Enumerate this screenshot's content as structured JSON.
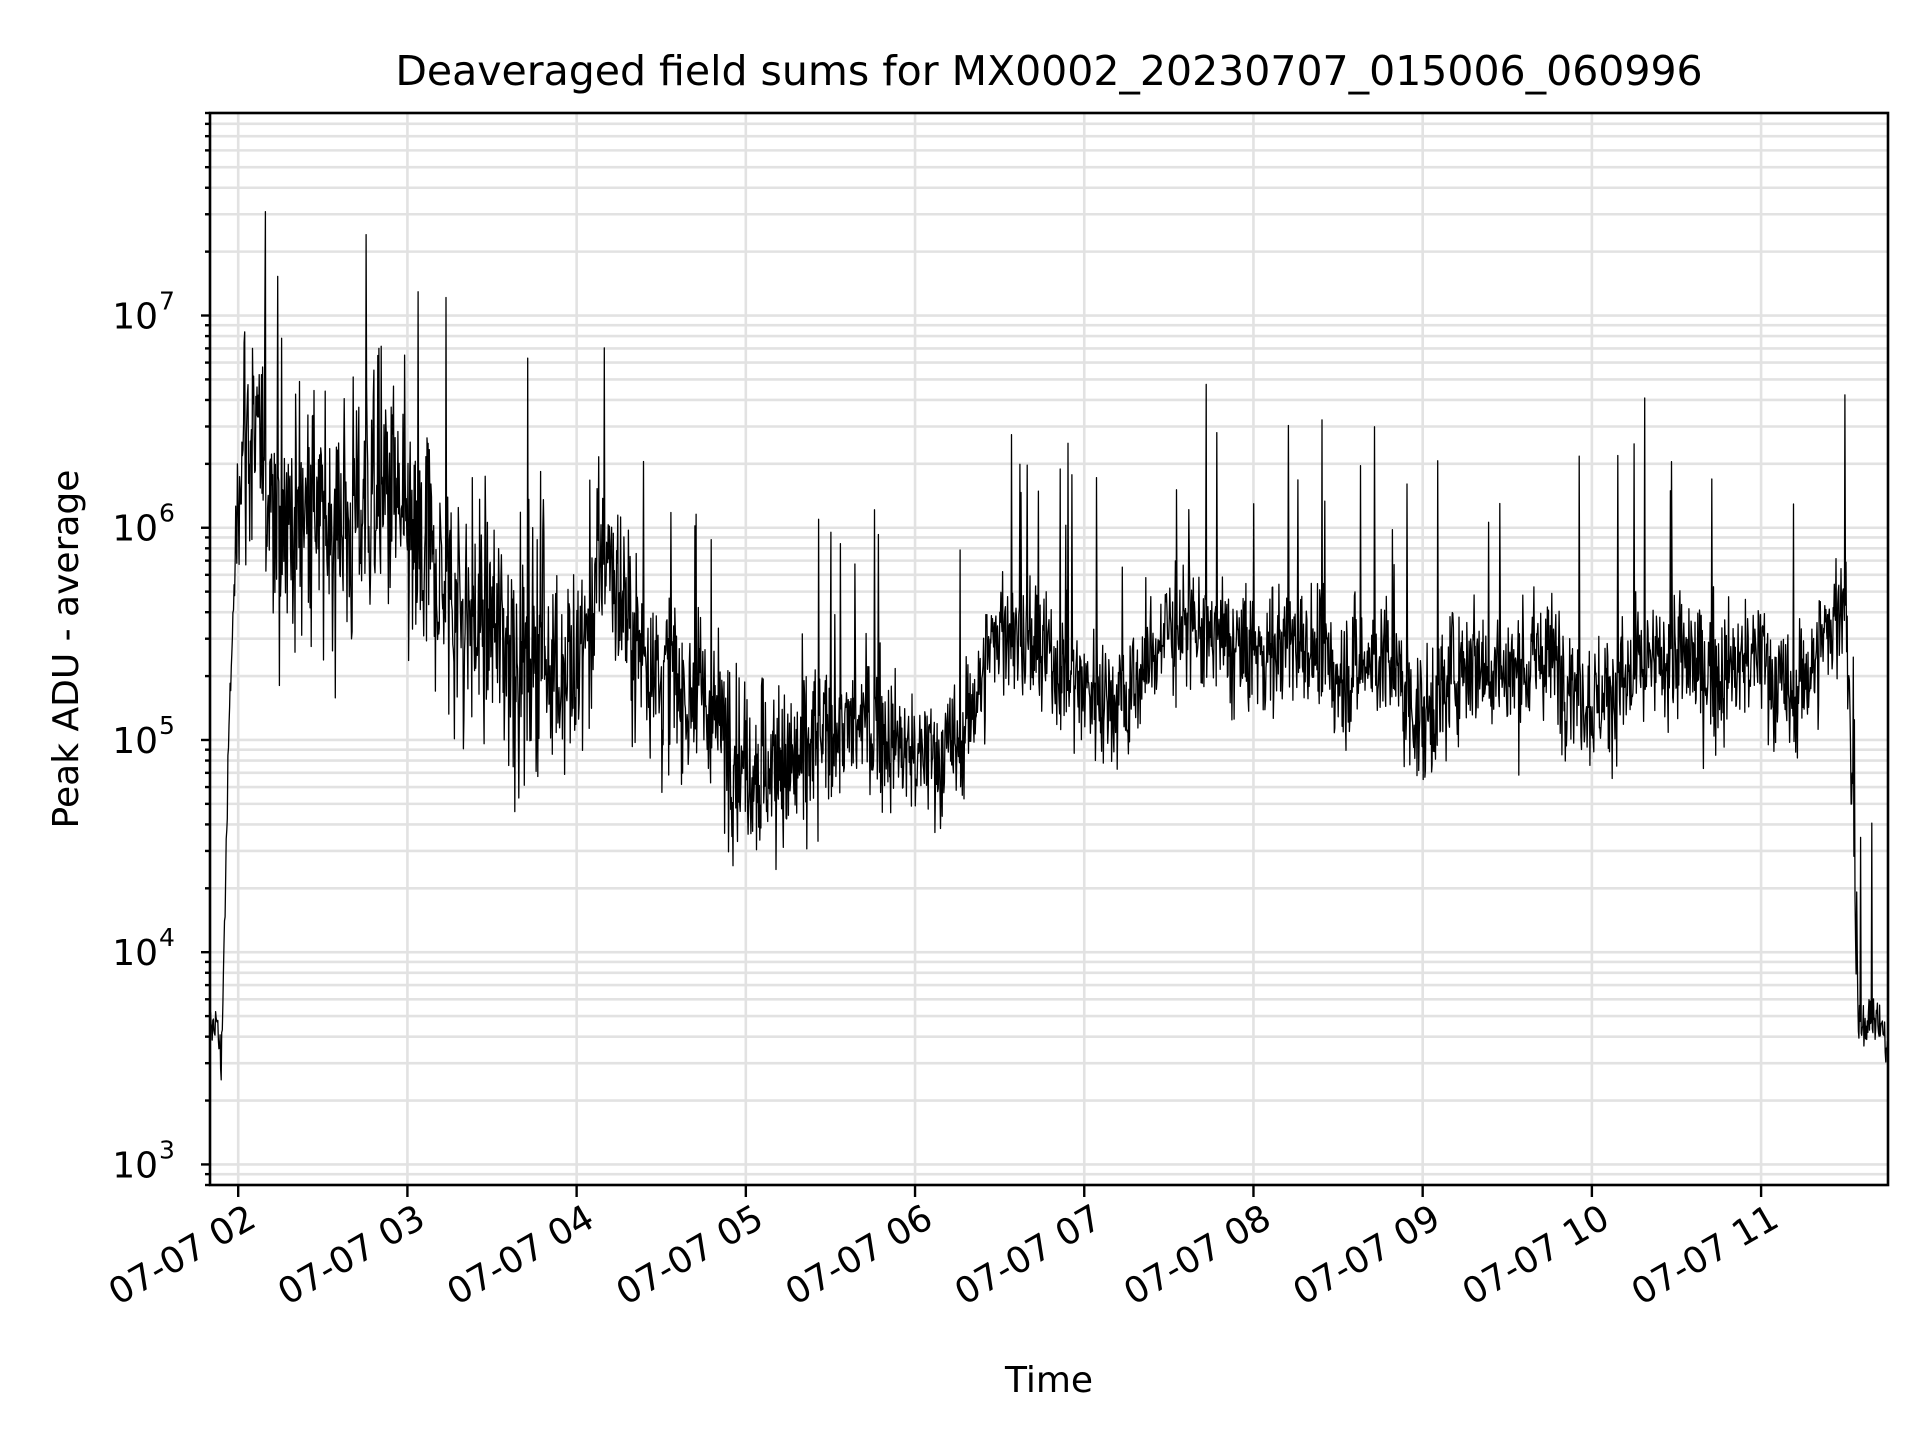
{
  "chart_data": {
    "type": "line",
    "title": "Deaveraged field sums for MX0002_20230707_015006_060996",
    "xlabel": "Time",
    "ylabel": "Peak ADU - average",
    "yscale": "log",
    "ylim": [
      800,
      90000000
    ],
    "xlim": [
      "2023-07-07 01:50",
      "2023-07-07 11:45"
    ],
    "grid": true,
    "x_ticks": [
      "07-07 02",
      "07-07 03",
      "07-07 04",
      "07-07 05",
      "07-07 06",
      "07-07 07",
      "07-07 08",
      "07-07 09",
      "07-07 10",
      "07-07 11"
    ],
    "y_ticks": [
      {
        "value": 1000,
        "base": "10",
        "exp": "3"
      },
      {
        "value": 10000,
        "base": "10",
        "exp": "4"
      },
      {
        "value": 100000,
        "base": "10",
        "exp": "5"
      },
      {
        "value": 1000000,
        "base": "10",
        "exp": "6"
      },
      {
        "value": 10000000,
        "base": "10",
        "exp": "7"
      }
    ],
    "series": [
      {
        "color": "#000000",
        "x": [
          "2023-07-07 01:50",
          "2023-07-07 01:52",
          "2023-07-07 01:54",
          "2023-07-07 01:57",
          "2023-07-07 02:00",
          "2023-07-07 02:02",
          "2023-07-07 02:05",
          "2023-07-07 02:10",
          "2023-07-07 02:15",
          "2023-07-07 02:20",
          "2023-07-07 02:25",
          "2023-07-07 02:30",
          "2023-07-07 02:35",
          "2023-07-07 02:40",
          "2023-07-07 02:45",
          "2023-07-07 02:50",
          "2023-07-07 02:55",
          "2023-07-07 03:00",
          "2023-07-07 03:10",
          "2023-07-07 03:20",
          "2023-07-07 03:30",
          "2023-07-07 03:40",
          "2023-07-07 03:50",
          "2023-07-07 04:00",
          "2023-07-07 04:10",
          "2023-07-07 04:20",
          "2023-07-07 04:30",
          "2023-07-07 04:45",
          "2023-07-07 05:00",
          "2023-07-07 05:15",
          "2023-07-07 05:30",
          "2023-07-07 05:45",
          "2023-07-07 06:00",
          "2023-07-07 06:15",
          "2023-07-07 06:30",
          "2023-07-07 06:45",
          "2023-07-07 07:00",
          "2023-07-07 07:15",
          "2023-07-07 07:30",
          "2023-07-07 07:45",
          "2023-07-07 08:00",
          "2023-07-07 08:15",
          "2023-07-07 08:30",
          "2023-07-07 08:45",
          "2023-07-07 09:00",
          "2023-07-07 09:15",
          "2023-07-07 09:30",
          "2023-07-07 09:45",
          "2023-07-07 10:00",
          "2023-07-07 10:15",
          "2023-07-07 10:30",
          "2023-07-07 10:45",
          "2023-07-07 11:00",
          "2023-07-07 11:10",
          "2023-07-07 11:20",
          "2023-07-07 11:30",
          "2023-07-07 11:35",
          "2023-07-07 11:40",
          "2023-07-07 11:45"
        ],
        "y": [
          4000,
          5000,
          3000,
          150000,
          1500000,
          3000000,
          2500000,
          1800000,
          1200000,
          1000000,
          1500000,
          900000,
          1200000,
          1000000,
          1500000,
          1200000,
          1500000,
          800000,
          600000,
          400000,
          350000,
          250000,
          250000,
          200000,
          800000,
          300000,
          200000,
          150000,
          80000,
          70000,
          110000,
          120000,
          80000,
          90000,
          350000,
          250000,
          180000,
          150000,
          350000,
          300000,
          250000,
          300000,
          200000,
          250000,
          120000,
          250000,
          200000,
          250000,
          150000,
          200000,
          250000,
          200000,
          250000,
          150000,
          250000,
          500000,
          4000,
          5000,
          3500
        ]
      }
    ]
  }
}
